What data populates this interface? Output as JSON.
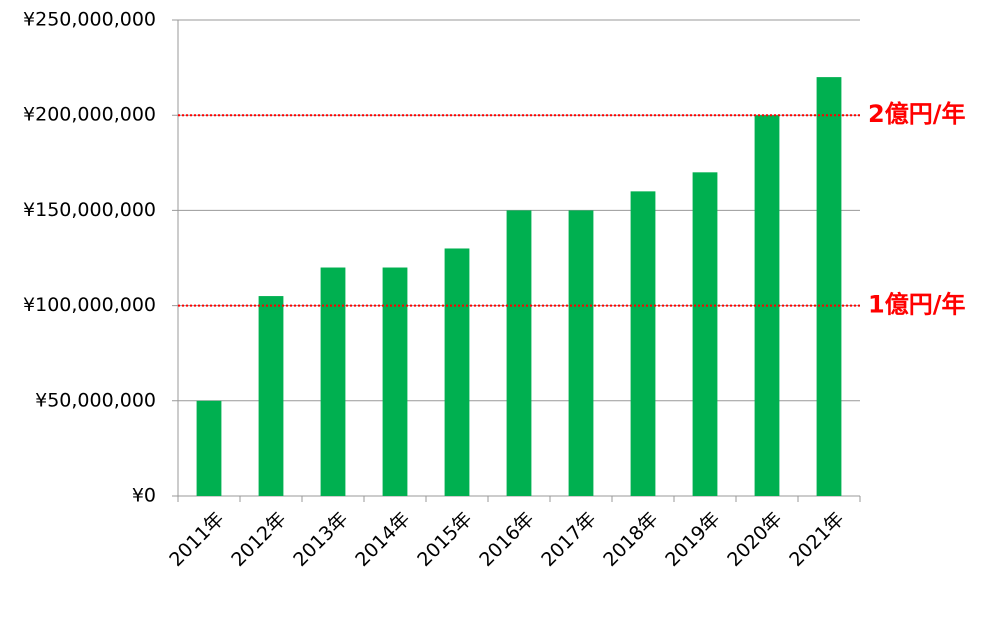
{
  "chart_data": {
    "type": "bar",
    "categories": [
      "2011年",
      "2012年",
      "2013年",
      "2014年",
      "2015年",
      "2016年",
      "2017年",
      "2018年",
      "2019年",
      "2020年",
      "2021年"
    ],
    "values": [
      50000000,
      105000000,
      120000000,
      120000000,
      130000000,
      150000000,
      150000000,
      160000000,
      170000000,
      200000000,
      220000000
    ],
    "color": "#00b050",
    "ylim": [
      0,
      250000000
    ],
    "yticks": [
      {
        "value": 0,
        "label": "¥0"
      },
      {
        "value": 50000000,
        "label": "¥50,000,000"
      },
      {
        "value": 100000000,
        "label": "¥100,000,000"
      },
      {
        "value": 150000000,
        "label": "¥150,000,000"
      },
      {
        "value": 200000000,
        "label": "¥200,000,000"
      },
      {
        "value": 250000000,
        "label": "¥250,000,000"
      }
    ],
    "grid": true,
    "reference_lines": [
      {
        "value": 100000000,
        "label": "1億円/年",
        "color": "#ff0000"
      },
      {
        "value": 200000000,
        "label": "2億円/年",
        "color": "#ff0000"
      }
    ]
  }
}
